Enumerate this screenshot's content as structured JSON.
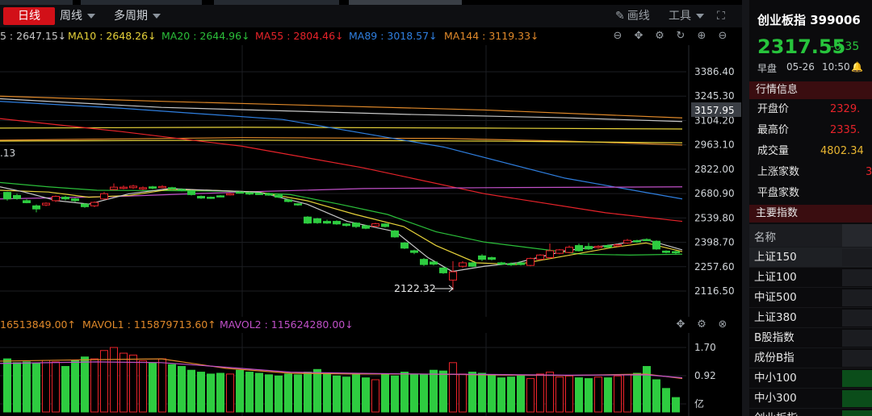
{
  "toolbar": {
    "daily": "日线",
    "weekly": "周线",
    "multi_period": "多周期",
    "draw": "画线",
    "tools": "工具"
  },
  "ma": {
    "ma5": "5 : 2647.15↓",
    "ma10": "MA10 : 2648.26↓",
    "ma20": "MA20 : 2644.96↓",
    "ma55": "MA55 : 2804.46↓",
    "ma89": "MA89 : 3018.57↓",
    "ma144": "MA144 : 3119.33↓"
  },
  "colors": {
    "up": "#e8232a",
    "down": "#2ecc40",
    "ma5": "#c8c8c8",
    "ma10": "#e6d23a",
    "ma20": "#2bbf3a",
    "ma55": "#e8232a",
    "ma89": "#2f7fe0",
    "ma144": "#e0892a",
    "mavol1": "#e0892a",
    "mavol2": "#c050c8"
  },
  "price_axis": [
    "3386.40",
    "3245.30",
    "3104.20",
    "2963.10",
    "2822.00",
    "2680.90",
    "2539.80",
    "2398.70",
    "2257.60",
    "2116.50"
  ],
  "price_tag": "3157.95",
  "left_label": ".13",
  "low_label": "2122.32",
  "volume": {
    "vol": "16513849.00↑",
    "mavol1": "MAVOL1 : 115879713.60↑",
    "mavol2": "MAVOL2 : 115624280.00↓",
    "axis": [
      "1.70",
      "0.92"
    ],
    "unit": "亿"
  },
  "quote": {
    "name": "创业板指 399006",
    "price": "2317.55",
    "change": "-0.35",
    "session": "早盘",
    "date": "05-26",
    "time": "10:50"
  },
  "market_info": {
    "title": "行情信息",
    "rows": [
      {
        "k": "开盘价",
        "v": "2329.",
        "c": "#e8232a"
      },
      {
        "k": "最高价",
        "v": "2335.",
        "c": "#e8232a"
      },
      {
        "k": "成交量",
        "v": "4802.34",
        "c": "#e8b530"
      },
      {
        "k": "上涨家数",
        "v": "3",
        "c": "#e8232a"
      },
      {
        "k": "平盘家数",
        "v": "",
        "c": "#ccc"
      }
    ]
  },
  "main_index": {
    "title": "主要指数",
    "col": "名称",
    "rows": [
      "上证150",
      "上证100",
      "中证500",
      "上证380",
      "B股指数",
      "成份B指",
      "中小100",
      "中小300",
      "创业板指"
    ]
  }
}
